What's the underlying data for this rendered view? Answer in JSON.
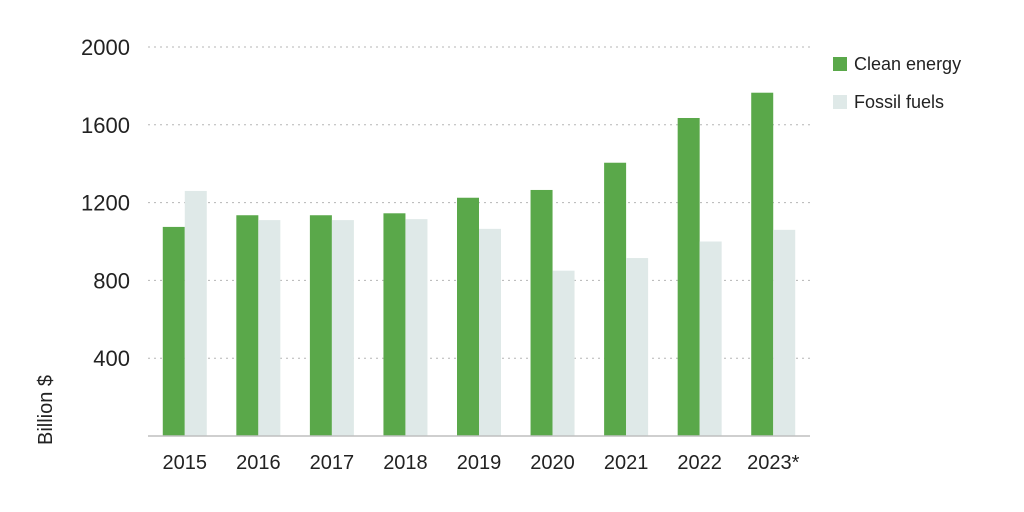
{
  "chart_data": {
    "type": "bar",
    "categories": [
      "2015",
      "2016",
      "2017",
      "2018",
      "2019",
      "2020",
      "2021",
      "2022",
      "2023*"
    ],
    "series": [
      {
        "name": "Clean energy",
        "color": "#5aa84a",
        "values": [
          1075,
          1135,
          1135,
          1145,
          1225,
          1265,
          1405,
          1635,
          1765
        ]
      },
      {
        "name": "Fossil fuels",
        "color": "#dfe9e8",
        "values": [
          1260,
          1110,
          1110,
          1115,
          1065,
          850,
          915,
          1000,
          1060
        ]
      }
    ],
    "ylabel": "Billion $",
    "xlabel": "",
    "ylim": [
      0,
      2000
    ],
    "yticks": [
      400,
      800,
      1200,
      1600,
      2000
    ],
    "ytick_labels": [
      "400",
      "800",
      "1200",
      "1600",
      "2000"
    ],
    "grid": true,
    "legend_position": "top-right"
  }
}
